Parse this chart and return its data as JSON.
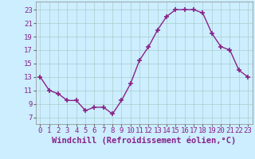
{
  "x": [
    0,
    1,
    2,
    3,
    4,
    5,
    6,
    7,
    8,
    9,
    10,
    11,
    12,
    13,
    14,
    15,
    16,
    17,
    18,
    19,
    20,
    21,
    22,
    23
  ],
  "y": [
    13,
    11,
    10.5,
    9.5,
    9.5,
    8,
    8.5,
    8.5,
    7.5,
    9.5,
    12,
    15.5,
    17.5,
    20,
    22,
    23,
    23,
    23,
    22.5,
    19.5,
    17.5,
    17,
    14,
    13
  ],
  "line_color": "#882288",
  "marker": "+",
  "marker_size": 4,
  "bg_color": "#cceeff",
  "grid_color": "#aacccc",
  "xlabel": "Windchill (Refroidissement éolien,°C)",
  "xlabel_fontsize": 7.5,
  "ylabel_ticks": [
    7,
    9,
    11,
    13,
    15,
    17,
    19,
    21,
    23
  ],
  "xlim": [
    -0.5,
    23.5
  ],
  "ylim": [
    6.0,
    24.2
  ],
  "xtick_labels": [
    "0",
    "1",
    "2",
    "3",
    "4",
    "5",
    "6",
    "7",
    "8",
    "9",
    "10",
    "11",
    "12",
    "13",
    "14",
    "15",
    "16",
    "17",
    "18",
    "19",
    "20",
    "21",
    "22",
    "23"
  ],
  "tick_fontsize": 6.5,
  "linewidth": 1.0
}
